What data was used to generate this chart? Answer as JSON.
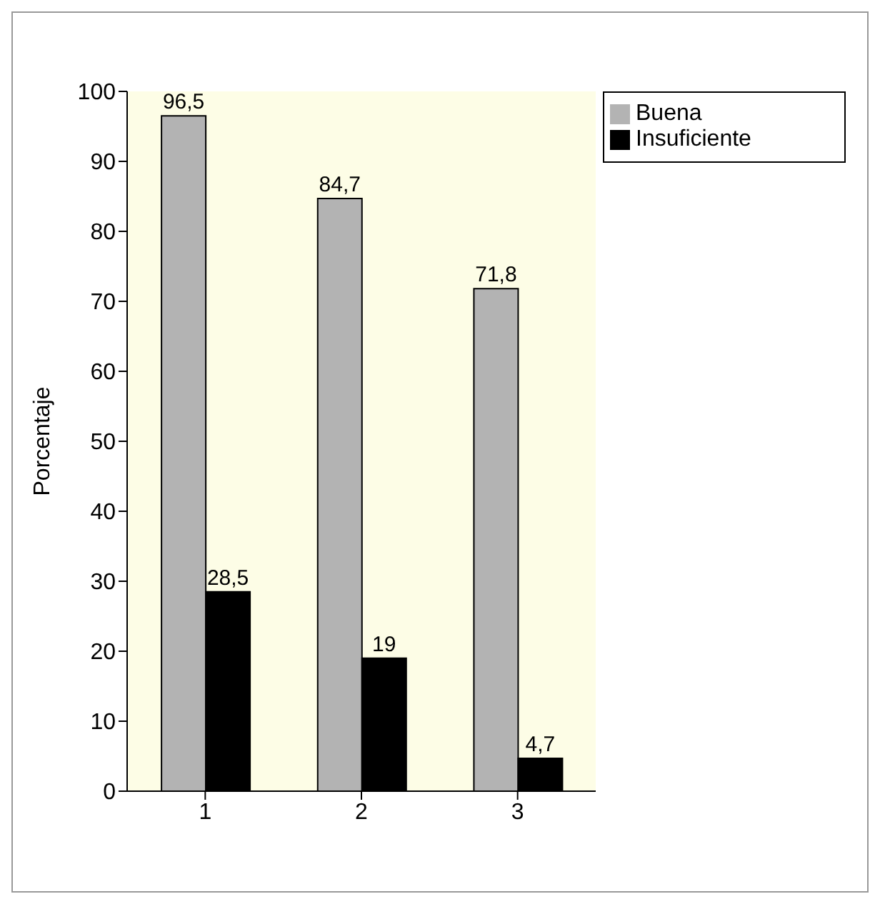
{
  "chart_data": {
    "type": "bar",
    "ylabel": "Porcentaje",
    "categories": [
      "1",
      "2",
      "3"
    ],
    "series": [
      {
        "name": "Buena",
        "color": "#b3b3b3",
        "values": [
          96.5,
          84.7,
          71.8
        ],
        "value_labels": [
          "96,5",
          "84,7",
          "71,8"
        ]
      },
      {
        "name": "Insuficiente",
        "color": "#000000",
        "values": [
          28.5,
          19,
          4.7
        ],
        "value_labels": [
          "28,5",
          "19",
          "4,7"
        ]
      }
    ],
    "ylim": [
      0,
      100
    ],
    "yticks": [
      0,
      10,
      20,
      30,
      40,
      50,
      60,
      70,
      80,
      90,
      100
    ],
    "grid": false,
    "legend": "top right"
  }
}
